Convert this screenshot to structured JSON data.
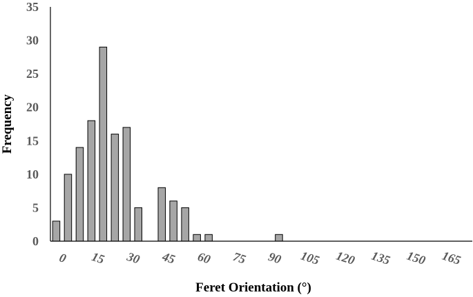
{
  "chart_data": {
    "type": "bar",
    "title": "",
    "xlabel": "Feret Orientation (°)",
    "ylabel": "Frequency",
    "x_tick_labels": [
      "0",
      "15",
      "30",
      "45",
      "60",
      "75",
      "90",
      "105",
      "120",
      "135",
      "150",
      "165"
    ],
    "y_tick_labels": [
      "0",
      "5",
      "10",
      "15",
      "20",
      "25",
      "30",
      "35"
    ],
    "ylim": [
      0,
      35
    ],
    "y_step": 5,
    "xlim": [
      0,
      180
    ],
    "bin_width": 5,
    "bins": [
      {
        "x": 2.5,
        "value": 3
      },
      {
        "x": 7.5,
        "value": 10
      },
      {
        "x": 12.5,
        "value": 14
      },
      {
        "x": 17.5,
        "value": 18
      },
      {
        "x": 22.5,
        "value": 29
      },
      {
        "x": 27.5,
        "value": 16
      },
      {
        "x": 32.5,
        "value": 17
      },
      {
        "x": 37.5,
        "value": 5
      },
      {
        "x": 42.5,
        "value": 0
      },
      {
        "x": 47.5,
        "value": 8
      },
      {
        "x": 52.5,
        "value": 6
      },
      {
        "x": 57.5,
        "value": 5
      },
      {
        "x": 62.5,
        "value": 1
      },
      {
        "x": 67.5,
        "value": 1
      },
      {
        "x": 97.5,
        "value": 1
      }
    ],
    "grid": false,
    "legend": "none",
    "colors": {
      "bar_fill": "#a6a6a6",
      "bar_stroke": "#000000",
      "axis": "#000000",
      "tick_text": "#595959"
    }
  }
}
